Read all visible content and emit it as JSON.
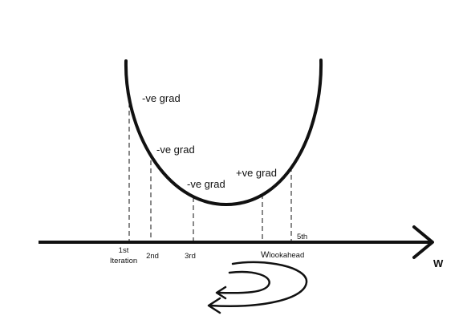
{
  "diagram": {
    "axis_label": "W",
    "curve_labels": [
      "-ve grad",
      "-ve grad",
      "-ve grad",
      "+ve grad"
    ],
    "tick_labels": {
      "first_line1": "1st",
      "first_line2": "Iteration",
      "second": "2nd",
      "third": "3rd",
      "lookahead_main": "W",
      "lookahead_sub": "lookahead",
      "fifth": "5th"
    },
    "colors": {
      "ink": "#111111",
      "background": "#ffffff"
    }
  }
}
